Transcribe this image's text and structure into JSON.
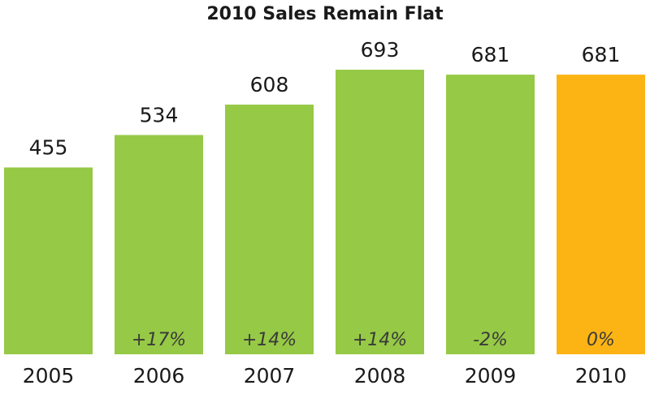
{
  "chart_data": {
    "type": "bar",
    "title": "2010 Sales Remain Flat",
    "categories": [
      "2005",
      "2006",
      "2007",
      "2008",
      "2009",
      "2010"
    ],
    "values": [
      455,
      534,
      608,
      693,
      681,
      681
    ],
    "colors": [
      "#96c945",
      "#96c945",
      "#96c945",
      "#96c945",
      "#96c945",
      "#fcb415"
    ],
    "annotations": [
      null,
      "+17%",
      "+14%",
      "+14%",
      "-2%",
      "0%"
    ]
  }
}
